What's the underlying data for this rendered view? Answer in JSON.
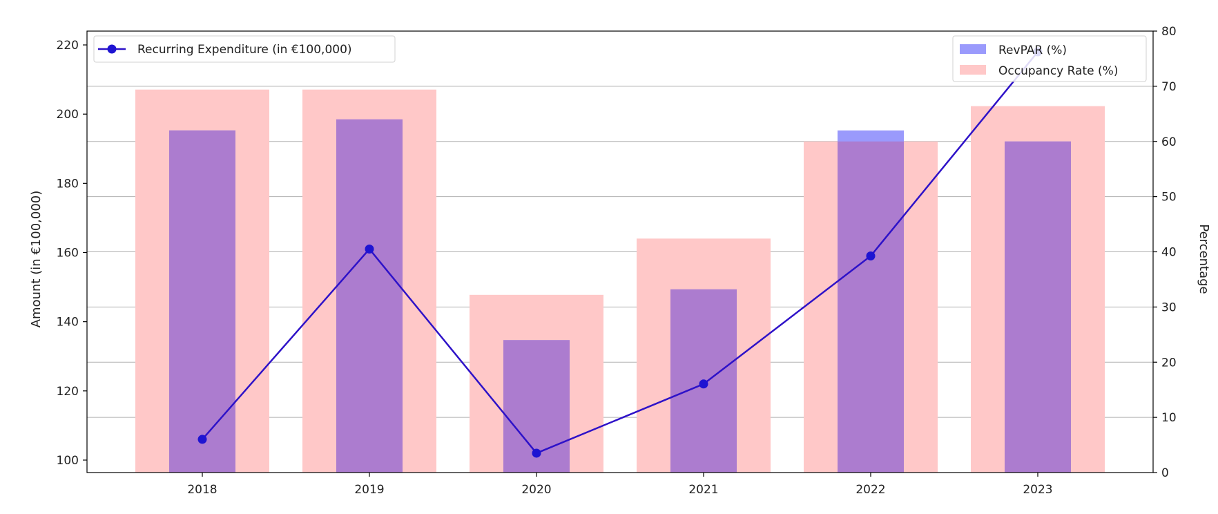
{
  "chart_data": {
    "type": "bar",
    "categories": [
      "2018",
      "2019",
      "2020",
      "2021",
      "2022",
      "2023"
    ],
    "series": [
      {
        "name": "Occupancy Rate (%)",
        "type": "bar",
        "axis": "right",
        "color": "#ffc8c8",
        "values": [
          69.4,
          69.4,
          32.2,
          42.4,
          60.0,
          66.4
        ]
      },
      {
        "name": "RevPAR (%)",
        "type": "bar",
        "axis": "right",
        "color": "#9a9afc",
        "values": [
          62.0,
          64.0,
          24.0,
          33.2,
          62.0,
          60.0
        ]
      },
      {
        "name": "Recurring Expenditure (in €100,000)",
        "type": "line",
        "axis": "left",
        "color": "#2e12c8",
        "marker_color": "#1e14d2",
        "values": [
          106,
          161,
          102,
          122,
          159,
          218
        ]
      }
    ],
    "overlap_color": "#ac7ccf",
    "ylabel": "Amount (in €100,000)",
    "ylabel_right": "Percentage",
    "ylim": [
      96.4,
      224
    ],
    "ylim_right": [
      0,
      80
    ],
    "yticks_left": [
      "100",
      "120",
      "140",
      "160",
      "180",
      "200",
      "220"
    ],
    "yticks_right": [
      "0",
      "10",
      "20",
      "30",
      "40",
      "50",
      "60",
      "70",
      "80"
    ],
    "grid": "horizontal (right axis)",
    "legend_line_placement": "upper-left",
    "legend_bars_placement": "upper-right"
  }
}
